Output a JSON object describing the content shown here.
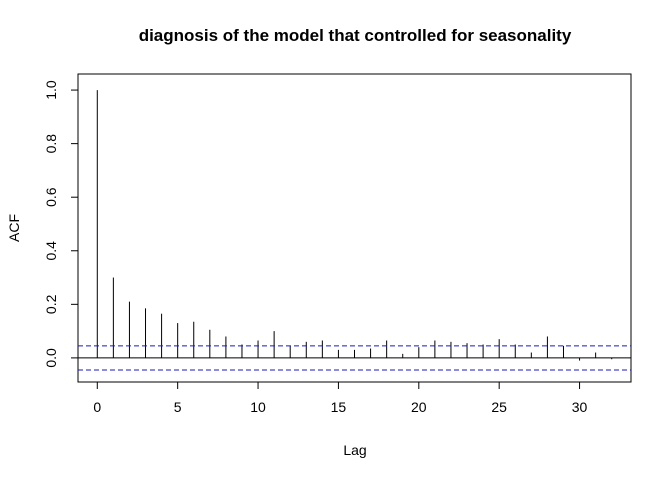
{
  "chart_data": {
    "type": "bar",
    "title": "diagnosis of the model that controlled for seasonality",
    "xlabel": "Lag",
    "ylabel": "ACF",
    "xlim": [
      -1.2,
      33.2
    ],
    "ylim": [
      -0.09,
      1.06
    ],
    "x_ticks": [
      0,
      5,
      10,
      15,
      20,
      25,
      30
    ],
    "y_ticks": [
      0.0,
      0.2,
      0.4,
      0.6,
      0.8,
      1.0
    ],
    "x": [
      0,
      1,
      2,
      3,
      4,
      5,
      6,
      7,
      8,
      9,
      10,
      11,
      12,
      13,
      14,
      15,
      16,
      17,
      18,
      19,
      20,
      21,
      22,
      23,
      24,
      25,
      26,
      27,
      28,
      29,
      30,
      31,
      32
    ],
    "values": [
      1.0,
      0.3,
      0.21,
      0.185,
      0.165,
      0.13,
      0.135,
      0.105,
      0.08,
      0.05,
      0.065,
      0.1,
      0.045,
      0.06,
      0.065,
      0.03,
      0.03,
      0.035,
      0.065,
      0.015,
      0.04,
      0.065,
      0.06,
      0.055,
      0.05,
      0.07,
      0.05,
      0.02,
      0.08,
      0.045,
      -0.01,
      0.02,
      -0.005
    ],
    "confidence_bound": 0.045,
    "colors": {
      "bars": "#000000",
      "bounds": "#1a1ab4",
      "zero_line": "#000000",
      "frame": "#000000"
    },
    "grid": false
  }
}
